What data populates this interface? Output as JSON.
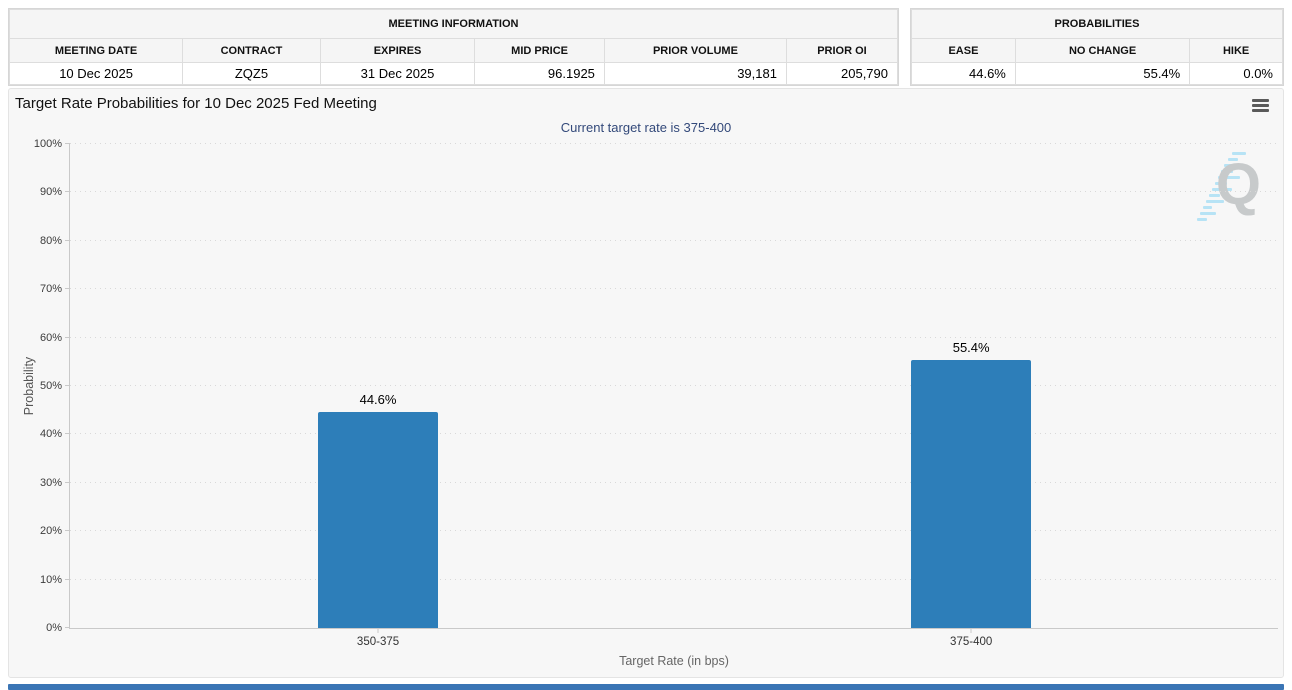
{
  "meeting_info": {
    "title": "MEETING INFORMATION",
    "columns": [
      "MEETING DATE",
      "CONTRACT",
      "EXPIRES",
      "MID PRICE",
      "PRIOR VOLUME",
      "PRIOR OI"
    ],
    "row": [
      "10 Dec 2025",
      "ZQZ5",
      "31 Dec 2025",
      "96.1925",
      "39,181",
      "205,790"
    ]
  },
  "probabilities": {
    "title": "PROBABILITIES",
    "columns": [
      "EASE",
      "NO CHANGE",
      "HIKE"
    ],
    "row": [
      "44.6%",
      "55.4%",
      "0.0%"
    ]
  },
  "chart_data": {
    "type": "bar",
    "title": "Target Rate Probabilities for 10 Dec 2025 Fed Meeting",
    "subtitle": "Current target rate is 375-400",
    "categories": [
      "350-375",
      "375-400"
    ],
    "values": [
      44.6,
      55.4
    ],
    "value_labels": [
      "44.6%",
      "55.4%"
    ],
    "xlabel": "Target Rate (in bps)",
    "ylabel": "Probability",
    "ylim": [
      0,
      100
    ],
    "ytick_step": 10,
    "ytick_labels": [
      "0%",
      "10%",
      "20%",
      "30%",
      "40%",
      "50%",
      "60%",
      "70%",
      "80%",
      "90%",
      "100%"
    ],
    "grid": "dotted-horizontal",
    "legend": "none",
    "colors": {
      "bar": "#2d7eb9",
      "subtitle": "#33497a",
      "footer": "#3a75b5",
      "plot_bg": "#f7f7f7"
    },
    "icons": {
      "export_menu": "hamburger-menu-icon",
      "watermark": "quikstrike-q-logo-icon"
    }
  }
}
